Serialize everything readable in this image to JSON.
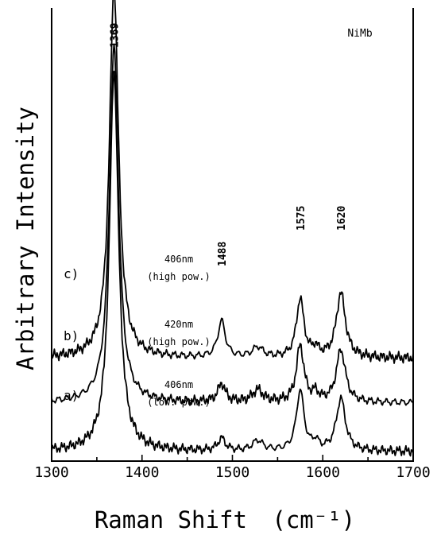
{
  "chart_data": {
    "type": "line",
    "title": "",
    "sample_label": "NiMb",
    "xlabel": "Raman Shift",
    "xlabel_unit": "(cm⁻¹)",
    "ylabel": "Arbitrary Intensity",
    "xlim": [
      1300,
      1700
    ],
    "x_ticks": [
      "1300",
      "1400",
      "1500",
      "1600",
      "1700"
    ],
    "y_ticks_shown": false,
    "grid": false,
    "peak_labels": [
      "1369",
      "1488",
      "1575",
      "1620"
    ],
    "series": [
      {
        "label": "c)",
        "annotation_line1": "406nm",
        "annotation_line2": "(high pow.)",
        "baseline": 0.23,
        "peaks": [
          {
            "x": 1369,
            "height": 0.92,
            "width": 6
          },
          {
            "x": 1488,
            "height": 0.09,
            "width": 5
          },
          {
            "x": 1528,
            "height": 0.025,
            "width": 7
          },
          {
            "x": 1575,
            "height": 0.145,
            "width": 5
          },
          {
            "x": 1592,
            "height": 0.02,
            "width": 4
          },
          {
            "x": 1620,
            "height": 0.16,
            "width": 6
          }
        ]
      },
      {
        "label": "b)",
        "annotation_line1": "420nm",
        "annotation_line2": "(high pow.)",
        "baseline": 0.12,
        "peaks": [
          {
            "x": 1369,
            "height": 0.88,
            "width": 6
          },
          {
            "x": 1488,
            "height": 0.045,
            "width": 5
          },
          {
            "x": 1528,
            "height": 0.03,
            "width": 7
          },
          {
            "x": 1575,
            "height": 0.14,
            "width": 5
          },
          {
            "x": 1592,
            "height": 0.02,
            "width": 4
          },
          {
            "x": 1620,
            "height": 0.13,
            "width": 6
          }
        ]
      },
      {
        "label": "a)",
        "annotation_line1": "406nm",
        "annotation_line2": "(low. pow.)",
        "baseline": 0.0,
        "peaks": [
          {
            "x": 1369,
            "height": 0.94,
            "width": 6
          },
          {
            "x": 1488,
            "height": 0.03,
            "width": 5
          },
          {
            "x": 1528,
            "height": 0.025,
            "width": 7
          },
          {
            "x": 1575,
            "height": 0.15,
            "width": 5
          },
          {
            "x": 1592,
            "height": 0.02,
            "width": 4
          },
          {
            "x": 1620,
            "height": 0.13,
            "width": 6
          }
        ]
      }
    ]
  }
}
